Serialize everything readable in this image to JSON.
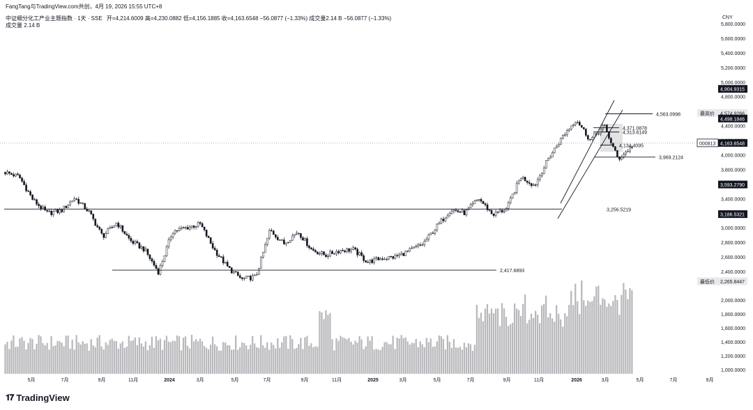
{
  "header": {
    "byline": "FangTang与TradingView.com共创，4月 19, 2026 15:55 UTC+8",
    "title": "中证细分化工产业主题指数 · 1天 · SSE",
    "ohlc": "开=4,214.6009  高=4,230.0882  低=4,156.1885  收=4,163.6548  −56.0877 (−1.33%)  成交量2.14 B  −56.0877 (−1.33%)",
    "volume": "成交量  2.14 B"
  },
  "currency": "CNY",
  "brand": "TradingView",
  "colors": {
    "candle": "#131722",
    "volume": "#b8b8bc",
    "line": "#131722",
    "highlight": "#c8c8cc"
  },
  "chart_data": {
    "type": "candlestick",
    "price_axis": {
      "range": [
        2265.8447,
        5800
      ],
      "ticks": [
        "5,800.0000",
        "5,600.0000",
        "5,400.0000",
        "5,200.0000",
        "5,000.0000",
        "4,800.0000",
        "4,600.0000",
        "4,400.0000",
        "4,200.0000",
        "4,000.0000",
        "3,800.0000",
        "3,600.0000",
        "3,400.0000",
        "3,200.0000",
        "3,000.0000",
        "2,800.0000",
        "2,600.0000",
        "2,400.0000"
      ]
    },
    "volume_axis": {
      "ticks": [
        "2,000.0000",
        "1,800.0000",
        "1,600.0000",
        "1,400.0000",
        "1,200.0000",
        "1,000.0000"
      ]
    },
    "time_axis": [
      "5月",
      "7月",
      "9月",
      "11月",
      "2024",
      "3月",
      "5月",
      "7月",
      "9月",
      "11月",
      "2025",
      "3月",
      "5月",
      "7月",
      "9月",
      "11月",
      "2026",
      "3月",
      "5月",
      "7月",
      "9月"
    ],
    "price_path": [
      3760,
      3700,
      3380,
      3200,
      3230,
      3410,
      3220,
      2880,
      3070,
      2820,
      2700,
      2390,
      2950,
      3000,
      3050,
      2700,
      2450,
      2290,
      2330,
      2970,
      2780,
      2950,
      2700,
      2620,
      2690,
      2700,
      2530,
      2580,
      2600,
      2680,
      2780,
      3020,
      3250,
      3200,
      3400,
      3180,
      3260,
      3700,
      3580,
      3950,
      4250,
      4490,
      4200,
      4400,
      3940,
      4120
    ],
    "axis_labels": [
      {
        "name": "highest",
        "tag": "最高价",
        "value": "4,574.9266"
      },
      {
        "name": "last",
        "tag": "000813",
        "value": "4,163.6548"
      },
      {
        "name": "lowest",
        "tag": "最低价",
        "value": "2,265.8447"
      }
    ],
    "axis_markers": [
      "4,904.9315",
      "4,498.1846",
      "3,593.2790",
      "3,186.5321"
    ],
    "levels": [
      "3,256.5219",
      "2,417.6893",
      "4,563.0998",
      "4,371.0878",
      "4,313.6149",
      "4,134.4095",
      "3,969.2124"
    ]
  }
}
